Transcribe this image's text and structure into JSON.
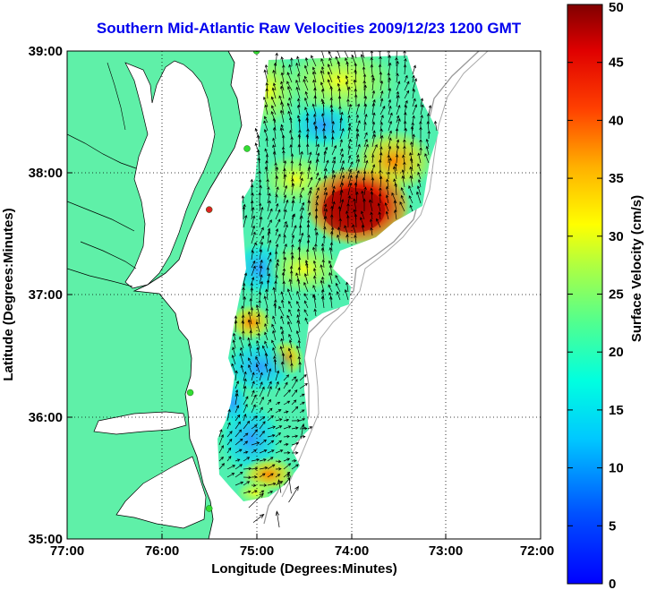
{
  "title": "Southern Mid-Atlantic Raw Velocities 2009/12/23 1200 GMT",
  "axes": {
    "xlabel": "Longitude (Degrees:Minutes)",
    "ylabel": "Latitude (Degrees:Minutes)",
    "xticks": [
      "77:00",
      "76:00",
      "75:00",
      "74:00",
      "73:00",
      "72:00"
    ],
    "yticks": [
      "39:00",
      "38:00",
      "37:00",
      "36:00",
      "35:00"
    ],
    "xlim": [
      -77,
      -72
    ],
    "ylim": [
      35,
      39
    ],
    "grid": true
  },
  "colorbar": {
    "label": "Surface Velocity (cm/s)",
    "ticks": [
      "0",
      "5",
      "10",
      "15",
      "20",
      "25",
      "30",
      "35",
      "40",
      "45",
      "50"
    ],
    "range": [
      0,
      50
    ],
    "colormap": "jet"
  },
  "colors": {
    "land": "#5ff0a8",
    "title": "#0000ee",
    "arrow": "#000000",
    "station_normal": "#33dd33",
    "station_alert": "#dd2222",
    "bathymetry": "#999999"
  },
  "stations": [
    {
      "lon": -75.0,
      "lat": 39.0,
      "status": "normal"
    },
    {
      "lon": -75.1,
      "lat": 38.2,
      "status": "normal"
    },
    {
      "lon": -75.5,
      "lat": 37.7,
      "status": "alert"
    },
    {
      "lon": -75.7,
      "lat": 36.2,
      "status": "normal"
    },
    {
      "lon": -75.5,
      "lat": 35.25,
      "status": "normal"
    }
  ]
}
